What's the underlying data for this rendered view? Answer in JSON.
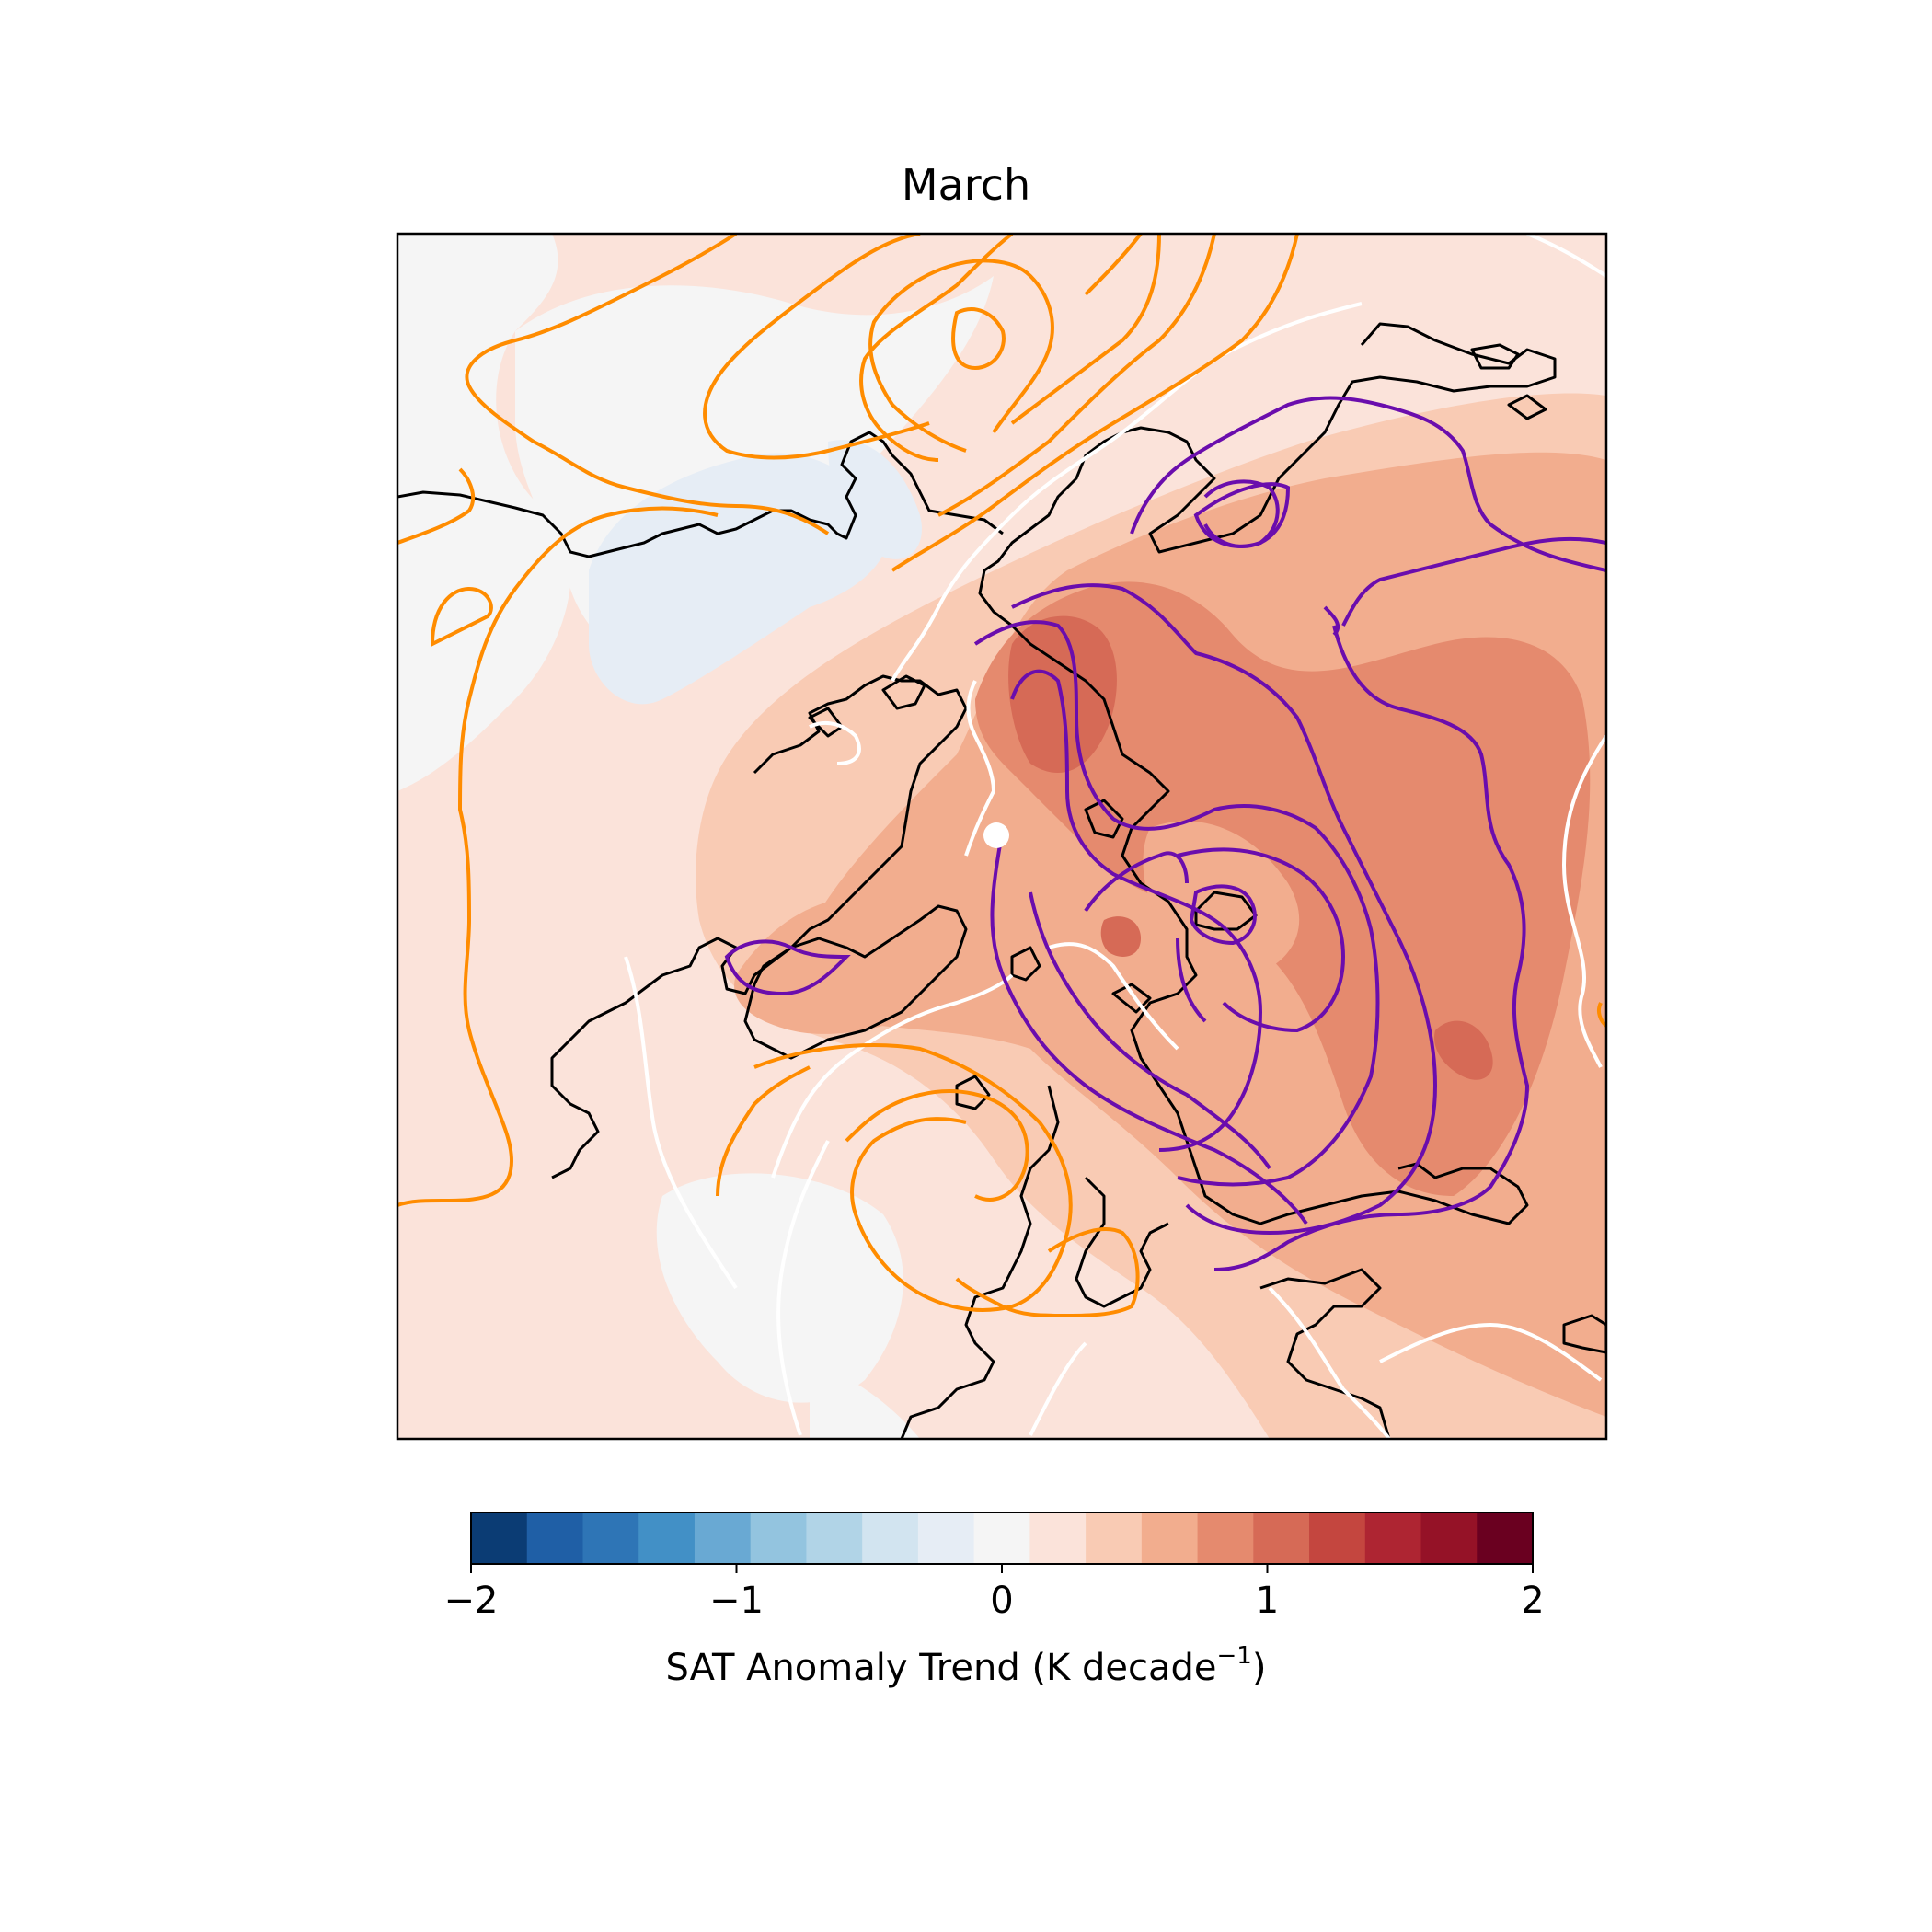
{
  "title": "March",
  "colorbar": {
    "label_main": "SAT Anomaly Trend (K decade",
    "label_sup": "−1",
    "label_close": ")",
    "ticks": [
      {
        "value": -2,
        "label": "−2"
      },
      {
        "value": -1,
        "label": "−1"
      },
      {
        "value": 0,
        "label": "0"
      },
      {
        "value": 1,
        "label": "1"
      },
      {
        "value": 2,
        "label": "2"
      }
    ],
    "range": [
      -2,
      2
    ],
    "levels": 19,
    "colors": [
      "#0b3c74",
      "#1f5fa6",
      "#2e75b6",
      "#4290c6",
      "#69a9d3",
      "#93c4df",
      "#b1d4e7",
      "#d2e4f0",
      "#e6edf5",
      "#f5f5f5",
      "#fbe3da",
      "#f9cbb4",
      "#f2ad8e",
      "#e58a6e",
      "#d66a56",
      "#c4463f",
      "#ae2532",
      "#951227",
      "#6a0020"
    ],
    "colormap": "RdBu_r"
  },
  "contours": {
    "positive_color": "#ff8c00",
    "negative_color": "#6a0dad",
    "zero_color": "#ffffff",
    "coastline_color": "#000000"
  },
  "chart_data": {
    "type": "heatmap",
    "title": "March",
    "variable": "SAT Anomaly Trend",
    "units": "K decade−1",
    "color_range": [
      -2,
      2
    ],
    "colorbar_ticks": [
      -2,
      -1,
      0,
      1,
      2
    ],
    "projection": "North Polar Stereographic"
  }
}
